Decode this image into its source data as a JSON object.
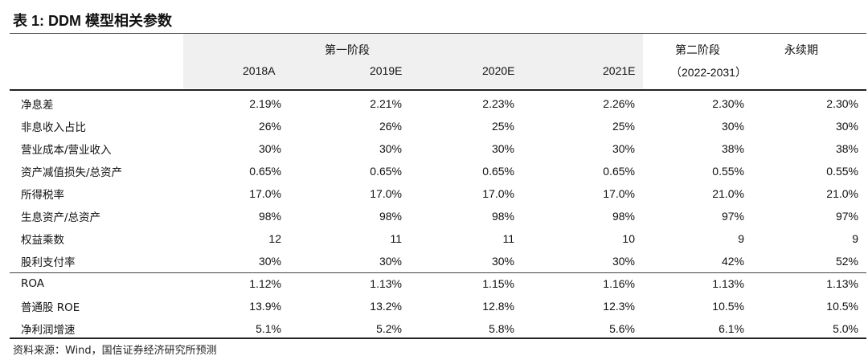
{
  "title": "表 1:  DDM 模型相关参数",
  "header": {
    "stage1": "第一阶段",
    "stage2": "第二阶段",
    "stage3": "永续期",
    "years": [
      "2018A",
      "2019E",
      "2020E",
      "2021E",
      "（2022-2031）"
    ]
  },
  "rows": [
    {
      "label": "净息差",
      "values": [
        "2.19%",
        "2.21%",
        "2.23%",
        "2.26%",
        "2.30%",
        "2.30%"
      ]
    },
    {
      "label": "非息收入占比",
      "values": [
        "26%",
        "26%",
        "25%",
        "25%",
        "30%",
        "30%"
      ]
    },
    {
      "label": "营业成本/营业收入",
      "values": [
        "30%",
        "30%",
        "30%",
        "30%",
        "38%",
        "38%"
      ]
    },
    {
      "label": "资产减值损失/总资产",
      "values": [
        "0.65%",
        "0.65%",
        "0.65%",
        "0.65%",
        "0.55%",
        "0.55%"
      ]
    },
    {
      "label": "所得税率",
      "values": [
        "17.0%",
        "17.0%",
        "17.0%",
        "17.0%",
        "21.0%",
        "21.0%"
      ]
    },
    {
      "label": "生息资产/总资产",
      "values": [
        "98%",
        "98%",
        "98%",
        "98%",
        "97%",
        "97%"
      ]
    },
    {
      "label": "权益乘数",
      "values": [
        "12",
        "11",
        "11",
        "10",
        "9",
        "9"
      ]
    },
    {
      "label": "股利支付率",
      "values": [
        "30%",
        "30%",
        "30%",
        "30%",
        "42%",
        "52%"
      ]
    },
    {
      "label": "ROA",
      "values": [
        "1.12%",
        "1.13%",
        "1.15%",
        "1.16%",
        "1.13%",
        "1.13%"
      ]
    },
    {
      "label": "普通股 ROE",
      "values": [
        "13.9%",
        "13.2%",
        "12.8%",
        "12.3%",
        "10.5%",
        "10.5%"
      ]
    },
    {
      "label": "净利润增速",
      "values": [
        "5.1%",
        "5.2%",
        "5.8%",
        "5.6%",
        "6.1%",
        "5.0%"
      ]
    }
  ],
  "source": "资料来源：Wind，国信证券经济研究所预测"
}
